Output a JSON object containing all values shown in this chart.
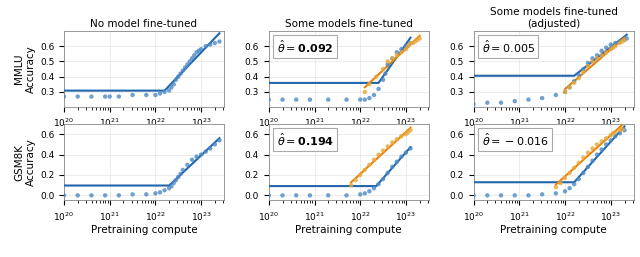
{
  "col_titles": [
    "No model fine-tuned",
    "Some models fine-tuned",
    "Some models fine-tuned\n(adjusted)"
  ],
  "row_labels": [
    "MMLU\nAccuracy",
    "GSM8K\nAccuracy"
  ],
  "xlabel": "Pretraining compute",
  "blue_color": "#4C88C4",
  "orange_color": "#E8A838",
  "line_blue": "#2166AC",
  "line_orange": "#E8820A",
  "xlim_log": [
    20.0,
    23.5
  ],
  "mmlu_ylim": [
    0.2,
    0.7
  ],
  "gsmbk_ylim": [
    -0.05,
    0.7
  ],
  "mmlu_yticks": [
    0.3,
    0.4,
    0.5,
    0.6
  ],
  "gsmbk_yticks": [
    0.0,
    0.2,
    0.4,
    0.6
  ],
  "blue_mmlu_nofinetune_x": [
    20.0,
    20.3,
    20.6,
    20.9,
    21.0,
    21.2,
    21.5,
    21.8,
    22.0,
    22.1,
    22.2,
    22.3,
    22.35,
    22.4,
    22.45,
    22.5,
    22.55,
    22.6,
    22.65,
    22.7,
    22.75,
    22.8,
    22.85,
    22.9,
    22.95,
    23.0,
    23.1,
    23.2,
    23.3,
    23.4
  ],
  "blue_mmlu_nofinetune_y": [
    0.27,
    0.27,
    0.27,
    0.27,
    0.27,
    0.27,
    0.28,
    0.28,
    0.28,
    0.29,
    0.3,
    0.31,
    0.33,
    0.35,
    0.38,
    0.4,
    0.42,
    0.44,
    0.46,
    0.48,
    0.5,
    0.52,
    0.54,
    0.56,
    0.57,
    0.58,
    0.6,
    0.61,
    0.62,
    0.63
  ],
  "blue_mmlu_someft_x": [
    20.0,
    20.3,
    20.6,
    20.9,
    21.3,
    21.7,
    22.0,
    22.1,
    22.2,
    22.3,
    22.4,
    22.5,
    22.55,
    22.6,
    22.7,
    22.8,
    22.9,
    23.0,
    23.1
  ],
  "blue_mmlu_someft_y": [
    0.25,
    0.25,
    0.25,
    0.25,
    0.25,
    0.25,
    0.25,
    0.25,
    0.26,
    0.28,
    0.32,
    0.38,
    0.42,
    0.48,
    0.52,
    0.56,
    0.58,
    0.6,
    0.62
  ],
  "orange_mmlu_someft_x": [
    22.1,
    22.2,
    22.35,
    22.5,
    22.6,
    22.7,
    22.8,
    22.9,
    23.0,
    23.05,
    23.1,
    23.15,
    23.2,
    23.25,
    23.3
  ],
  "orange_mmlu_someft_y": [
    0.3,
    0.35,
    0.4,
    0.45,
    0.5,
    0.52,
    0.54,
    0.56,
    0.58,
    0.6,
    0.62,
    0.62,
    0.63,
    0.64,
    0.65
  ],
  "blue_mmlu_adj_x": [
    20.0,
    20.3,
    20.6,
    20.9,
    21.2,
    21.5,
    21.8,
    22.0,
    22.1,
    22.2,
    22.3,
    22.4,
    22.5,
    22.6,
    22.7,
    22.8,
    22.9,
    23.0,
    23.1,
    23.2,
    23.3,
    23.35
  ],
  "blue_mmlu_adj_y": [
    0.22,
    0.23,
    0.23,
    0.24,
    0.25,
    0.26,
    0.28,
    0.3,
    0.33,
    0.37,
    0.41,
    0.45,
    0.49,
    0.52,
    0.54,
    0.57,
    0.59,
    0.61,
    0.62,
    0.63,
    0.64,
    0.65
  ],
  "orange_mmlu_adj_x": [
    22.0,
    22.1,
    22.2,
    22.3,
    22.4,
    22.5,
    22.6,
    22.7,
    22.8,
    22.9,
    23.0,
    23.05,
    23.1,
    23.2,
    23.25,
    23.3
  ],
  "orange_mmlu_adj_y": [
    0.3,
    0.33,
    0.36,
    0.39,
    0.43,
    0.47,
    0.5,
    0.52,
    0.54,
    0.56,
    0.58,
    0.59,
    0.6,
    0.62,
    0.63,
    0.64
  ],
  "blue_gsmbk_nofinetune_x": [
    20.0,
    20.3,
    20.6,
    20.9,
    21.2,
    21.5,
    21.8,
    22.0,
    22.1,
    22.2,
    22.3,
    22.35,
    22.4,
    22.45,
    22.5,
    22.55,
    22.6,
    22.7,
    22.8,
    22.9,
    23.0,
    23.1,
    23.2,
    23.3,
    23.4
  ],
  "blue_gsmbk_nofinetune_y": [
    0.0,
    0.0,
    0.0,
    0.0,
    0.0,
    0.01,
    0.01,
    0.02,
    0.03,
    0.05,
    0.07,
    0.09,
    0.12,
    0.15,
    0.18,
    0.21,
    0.25,
    0.3,
    0.35,
    0.38,
    0.4,
    0.43,
    0.46,
    0.5,
    0.54
  ],
  "blue_gsmbk_someft_x": [
    20.0,
    20.3,
    20.6,
    20.9,
    21.3,
    21.7,
    22.0,
    22.1,
    22.2,
    22.3,
    22.4,
    22.5,
    22.6,
    22.7,
    22.8,
    22.9,
    23.0,
    23.1
  ],
  "blue_gsmbk_someft_y": [
    0.0,
    0.0,
    0.0,
    0.0,
    0.0,
    0.0,
    0.01,
    0.02,
    0.04,
    0.07,
    0.11,
    0.16,
    0.22,
    0.28,
    0.33,
    0.38,
    0.42,
    0.46
  ],
  "orange_gsmbk_someft_x": [
    21.8,
    21.9,
    22.0,
    22.1,
    22.2,
    22.3,
    22.4,
    22.5,
    22.6,
    22.7,
    22.8,
    22.9,
    23.0,
    23.05,
    23.1
  ],
  "orange_gsmbk_someft_y": [
    0.1,
    0.15,
    0.2,
    0.25,
    0.3,
    0.35,
    0.4,
    0.44,
    0.48,
    0.52,
    0.55,
    0.58,
    0.6,
    0.62,
    0.64
  ],
  "blue_gsmbk_adj_x": [
    20.0,
    20.3,
    20.6,
    20.9,
    21.2,
    21.5,
    21.8,
    22.0,
    22.1,
    22.2,
    22.3,
    22.4,
    22.5,
    22.6,
    22.7,
    22.8,
    22.9,
    23.0,
    23.1,
    23.2,
    23.3
  ],
  "blue_gsmbk_adj_y": [
    0.0,
    0.0,
    0.0,
    0.0,
    0.0,
    0.01,
    0.02,
    0.04,
    0.07,
    0.11,
    0.16,
    0.22,
    0.28,
    0.34,
    0.4,
    0.45,
    0.5,
    0.54,
    0.58,
    0.61,
    0.64
  ],
  "orange_gsmbk_adj_x": [
    21.8,
    21.9,
    22.0,
    22.1,
    22.2,
    22.3,
    22.4,
    22.5,
    22.6,
    22.7,
    22.8,
    22.9,
    23.0,
    23.05,
    23.1,
    23.2,
    23.25
  ],
  "orange_gsmbk_adj_y": [
    0.08,
    0.12,
    0.17,
    0.22,
    0.27,
    0.32,
    0.37,
    0.42,
    0.46,
    0.5,
    0.53,
    0.56,
    0.59,
    0.61,
    0.62,
    0.64,
    0.65
  ]
}
